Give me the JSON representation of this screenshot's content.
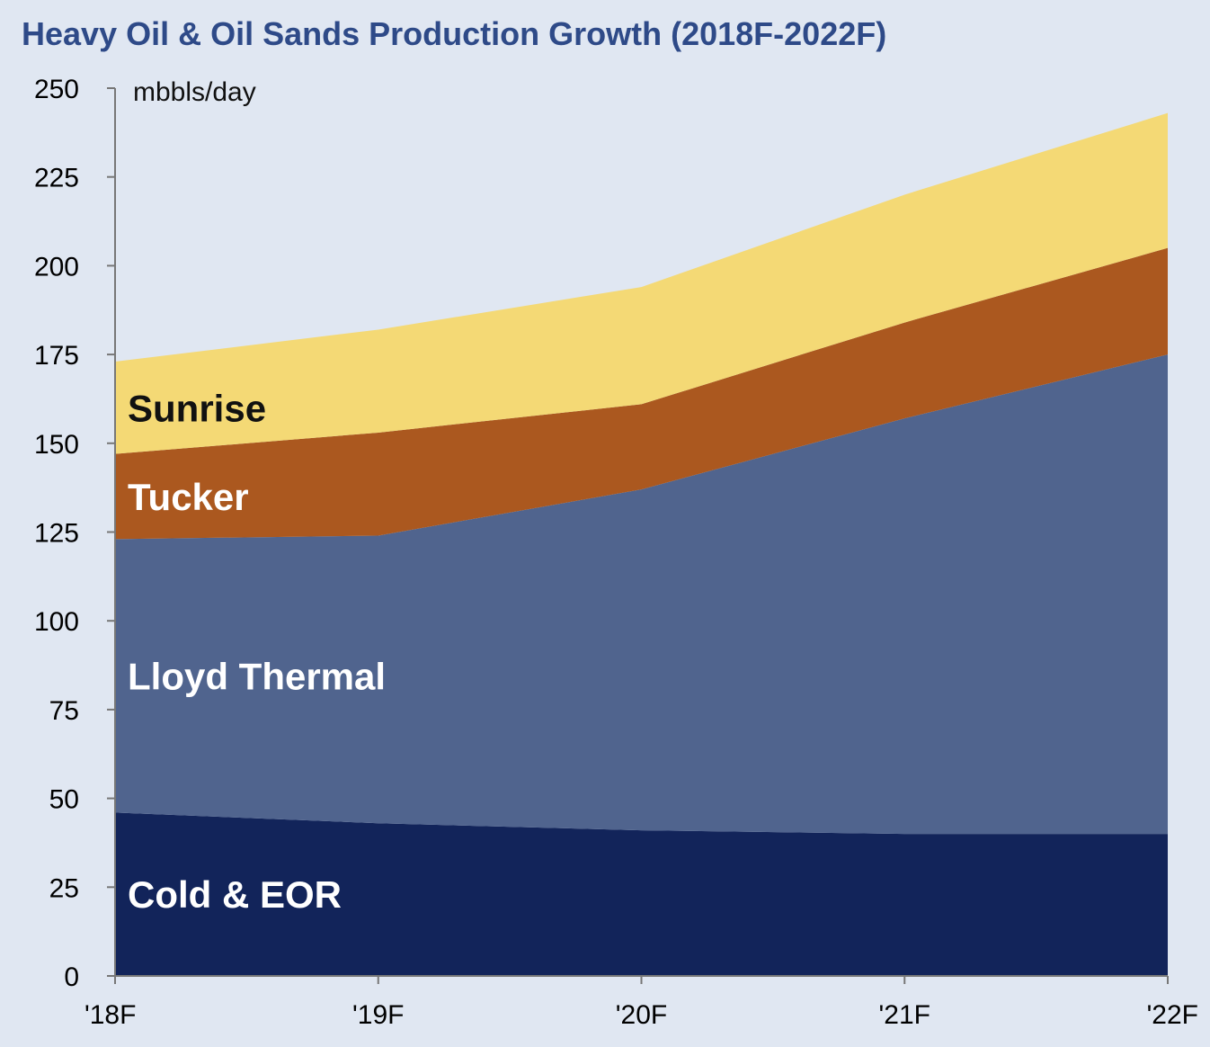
{
  "chart_data": {
    "type": "area",
    "stacked": true,
    "title": "Heavy Oil & Oil Sands Production Growth (2018F-2022F)",
    "unit_label": "mbbls/day",
    "categories": [
      "'18F",
      "'19F",
      "'20F",
      "'21F",
      "'22F"
    ],
    "ylim": [
      0,
      250
    ],
    "yticks": [
      0,
      25,
      50,
      75,
      100,
      125,
      150,
      175,
      200,
      225,
      250
    ],
    "series": [
      {
        "name": "Cold & EOR",
        "color": "#12245a",
        "label_color": "#ffffff",
        "values": [
          46,
          43,
          41,
          40,
          40
        ]
      },
      {
        "name": "Lloyd Thermal",
        "color": "#50648e",
        "label_color": "#ffffff",
        "values": [
          77,
          81,
          96,
          117,
          135
        ]
      },
      {
        "name": "Tucker",
        "color": "#ab581f",
        "label_color": "#ffffff",
        "values": [
          24,
          29,
          24,
          27,
          30
        ]
      },
      {
        "name": "Sunrise",
        "color": "#f4d975",
        "label_color": "#111111",
        "values": [
          26,
          29,
          33,
          36,
          38
        ]
      }
    ],
    "colors": {
      "title": "#2e4a88",
      "background": "#e0e7f2",
      "axis": "#777777"
    }
  }
}
